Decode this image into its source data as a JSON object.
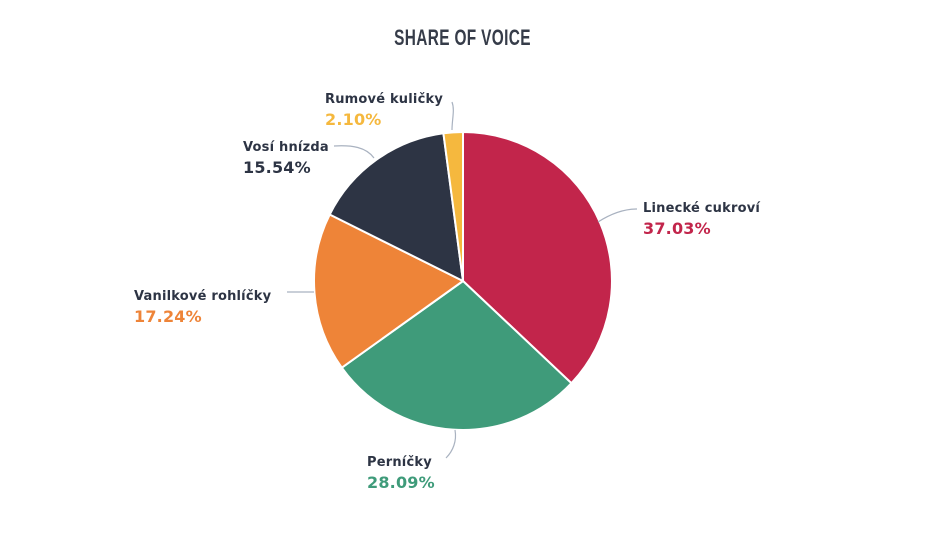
{
  "chart_data": {
    "type": "pie",
    "title": "SHARE OF VOICE",
    "title_color": "#363c49",
    "unit": "%",
    "start_angle_deg": 0,
    "direction": "clockwise",
    "total": 100,
    "slices": [
      {
        "label": "Linecké cukroví",
        "value": 37.03,
        "display": "37.03%",
        "color": "#c2254b"
      },
      {
        "label": "Perníčky",
        "value": 28.09,
        "display": "28.09%",
        "color": "#3f9b7a"
      },
      {
        "label": "Vanilkové rohlíčky",
        "value": 17.24,
        "display": "17.24%",
        "color": "#ee8438"
      },
      {
        "label": "Vosí hnízda",
        "value": 15.54,
        "display": "15.54%",
        "color": "#2d3444"
      },
      {
        "label": "Rumové kuličky",
        "value": 2.1,
        "display": "2.10%",
        "color": "#f5b83e"
      }
    ],
    "label_text_color": "#2d3444",
    "leader_line_color": "#a9b2c0",
    "slice_stroke_color": "#ffffff"
  }
}
